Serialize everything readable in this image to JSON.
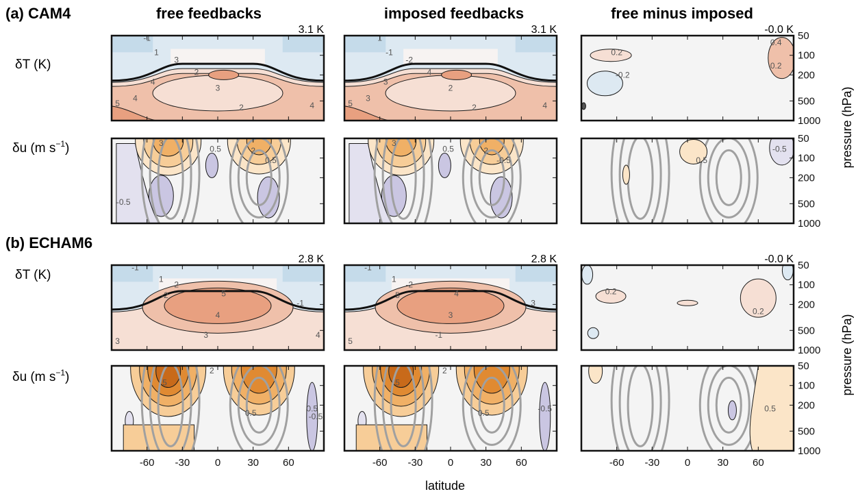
{
  "chart_data": {
    "type": "heatmap",
    "rows": [
      {
        "label": "(a) CAM4",
        "model": "CAM4"
      },
      {
        "label": "(b) ECHAM6",
        "model": "ECHAM6"
      }
    ],
    "columns": [
      "free feedbacks",
      "imposed feedbacks",
      "free minus imposed"
    ],
    "row_variables": [
      "δT (K)",
      "δu (m s",
      "−1",
      ")"
    ],
    "global_mean_values": [
      [
        "3.1 K",
        "3.1 K",
        "-0.0 K"
      ],
      [
        "2.8 K",
        "2.8 K",
        "-0.0 K"
      ]
    ],
    "xlabel": "latitude",
    "x_ticks": [
      -60,
      -30,
      0,
      30,
      60
    ],
    "xlim": [
      -90,
      90
    ],
    "ylabel": "pressure (hPa)",
    "y_ticks": [
      50,
      100,
      200,
      500,
      1000
    ],
    "ylim": [
      1000,
      50
    ],
    "y_scale": "log",
    "contour_labels": {
      "cam4_dT_free": [
        "-1",
        "1",
        "3",
        "4",
        "2",
        "3",
        "4",
        "5",
        "2",
        "4"
      ],
      "cam4_dT_imposed": [
        "1",
        "-1",
        "-2",
        "3",
        "4",
        "2",
        "3",
        "5",
        "2",
        "4"
      ],
      "cam4_dT_diff": [
        "0.2",
        "-0.2",
        "0.4",
        "0.2"
      ],
      "cam4_du_free": [
        "3",
        "2",
        "0.5",
        "0.5",
        "-0.5"
      ],
      "cam4_du_imposed": [
        "3",
        "2",
        "0.5",
        "-0.5"
      ],
      "cam4_du_diff": [
        "0.5",
        "-0.5"
      ],
      "echam6_dT_free": [
        "-1",
        "1",
        "2",
        "-2",
        "5",
        "4",
        "3",
        "-1",
        "3",
        "4"
      ],
      "echam6_dT_imposed": [
        "-1",
        "1",
        "-2",
        "5",
        "4",
        "3",
        "-1",
        "3",
        "5"
      ],
      "echam6_dT_diff": [
        "0.2",
        "0.2"
      ],
      "echam6_du_free": [
        "2",
        "5",
        "0.5",
        "0.5",
        "-0.5"
      ],
      "echam6_du_imposed": [
        "2",
        "5",
        "0.5",
        "-0.5"
      ],
      "echam6_du_diff": [
        "0.5"
      ]
    },
    "colors": {
      "warm": [
        "#f6dfd4",
        "#efc0aa",
        "#e8a080",
        "#e08060"
      ],
      "cool": [
        "#dde9f2",
        "#c5dbea",
        "#a9c8e0"
      ],
      "wind_pos": [
        "#fbe5c8",
        "#f7cd98",
        "#f0b066",
        "#e08a32",
        "#c86a1a"
      ],
      "wind_neg": [
        "#e3e1ef",
        "#cac6e2",
        "#b0abd4"
      ],
      "neutral": "#f4f4f4",
      "climatology_contour": "#a0a0a0"
    }
  }
}
